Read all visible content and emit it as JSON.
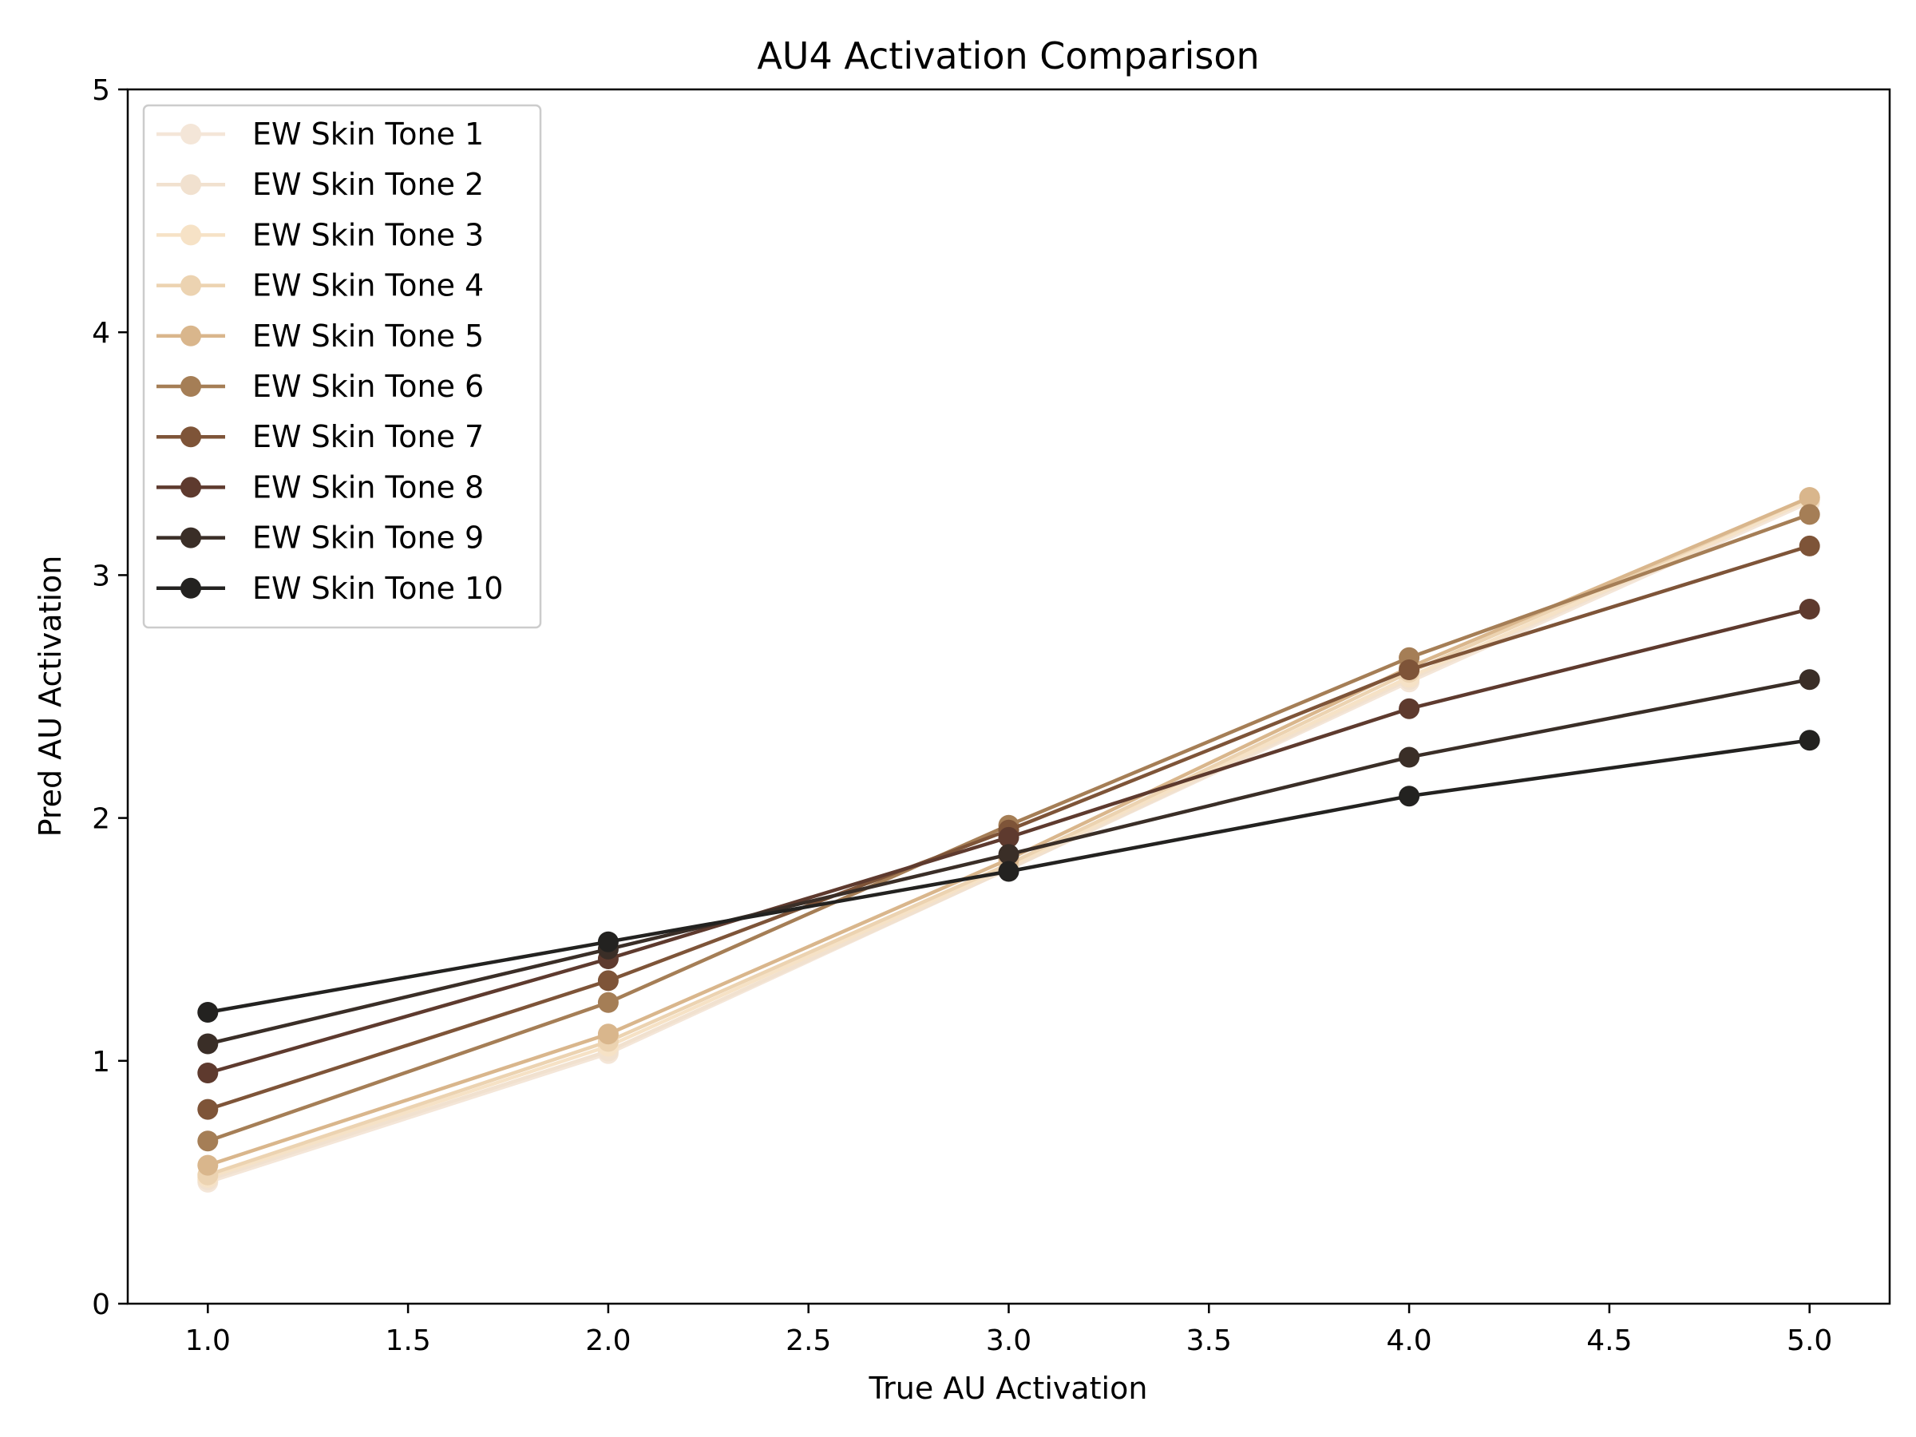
{
  "chart_data": {
    "type": "line",
    "title": "AU4 Activation Comparison",
    "xlabel": "True AU Activation",
    "ylabel": "Pred AU Activation",
    "xlim": [
      0.8,
      5.2
    ],
    "ylim": [
      0,
      5
    ],
    "xticks": [
      "1.0",
      "1.5",
      "2.0",
      "2.5",
      "3.0",
      "3.5",
      "4.0",
      "4.5",
      "5.0"
    ],
    "yticks": [
      "0",
      "1",
      "2",
      "3",
      "4",
      "5"
    ],
    "grid": false,
    "legend_position": "top-left",
    "x": [
      1,
      2,
      3,
      4,
      5
    ],
    "series": [
      {
        "name": "EW Skin Tone 1",
        "color": "#f4e6d8",
        "values": [
          0.5,
          1.03,
          1.79,
          2.56,
          3.3
        ]
      },
      {
        "name": "EW Skin Tone 2",
        "color": "#f1e1cf",
        "values": [
          0.51,
          1.04,
          1.79,
          2.57,
          3.31
        ]
      },
      {
        "name": "EW Skin Tone 3",
        "color": "#f6e2c6",
        "values": [
          0.52,
          1.06,
          1.8,
          2.58,
          3.31
        ]
      },
      {
        "name": "EW Skin Tone 4",
        "color": "#ecd3b1",
        "values": [
          0.53,
          1.08,
          1.81,
          2.6,
          3.32
        ]
      },
      {
        "name": "EW Skin Tone 5",
        "color": "#d9b68c",
        "values": [
          0.57,
          1.11,
          1.83,
          2.62,
          3.32
        ]
      },
      {
        "name": "EW Skin Tone 6",
        "color": "#a57e56",
        "values": [
          0.67,
          1.24,
          1.97,
          2.66,
          3.25
        ]
      },
      {
        "name": "EW Skin Tone 7",
        "color": "#7e5438",
        "values": [
          0.8,
          1.33,
          1.95,
          2.61,
          3.12
        ]
      },
      {
        "name": "EW Skin Tone 8",
        "color": "#5e3a2e",
        "values": [
          0.95,
          1.42,
          1.92,
          2.45,
          2.86
        ]
      },
      {
        "name": "EW Skin Tone 9",
        "color": "#3a2e27",
        "values": [
          1.07,
          1.46,
          1.85,
          2.25,
          2.57
        ]
      },
      {
        "name": "EW Skin Tone 10",
        "color": "#232220",
        "values": [
          1.2,
          1.49,
          1.78,
          2.09,
          2.32
        ]
      }
    ]
  }
}
